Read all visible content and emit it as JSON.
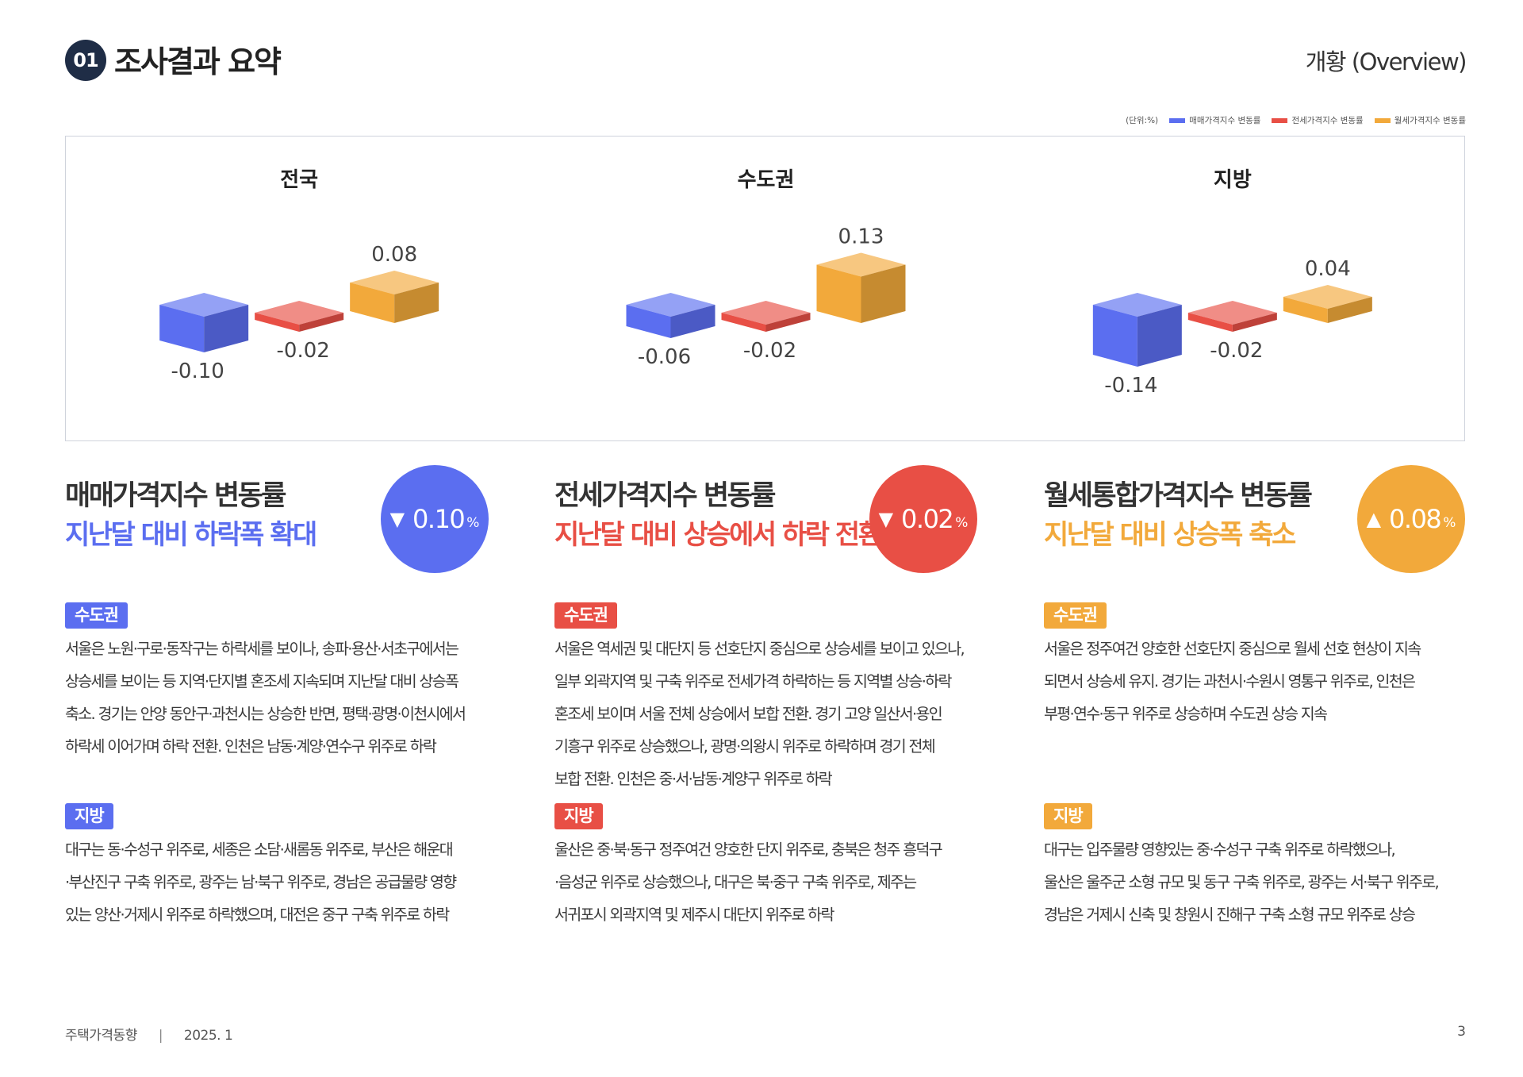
{
  "header": {
    "section_number": "01",
    "section_title": "조사결과 요약",
    "overview_label": "개황 (Overview)"
  },
  "legend": {
    "unit": "(단위:%)",
    "items": [
      {
        "label": "매매가격지수 변동률",
        "color": "#5b6ef0"
      },
      {
        "label": "전세가격지수 변동률",
        "color": "#e84f45"
      },
      {
        "label": "월세가격지수 변동률",
        "color": "#f2a93b"
      }
    ]
  },
  "chart_data": [
    {
      "type": "bar",
      "title": "전국",
      "categories": [
        "매매가격지수 변동률",
        "전세가격지수 변동률",
        "월세가격지수 변동률"
      ],
      "values": [
        -0.1,
        -0.02,
        0.08
      ],
      "labels": [
        "-0.10",
        "-0.02",
        "0.08"
      ]
    },
    {
      "type": "bar",
      "title": "수도권",
      "categories": [
        "매매가격지수 변동률",
        "전세가격지수 변동률",
        "월세가격지수 변동률"
      ],
      "values": [
        -0.06,
        -0.02,
        0.13
      ],
      "labels": [
        "-0.06",
        "-0.02",
        "0.13"
      ]
    },
    {
      "type": "bar",
      "title": "지방",
      "categories": [
        "매매가격지수 변동률",
        "전세가격지수 변동률",
        "월세가격지수 변동률"
      ],
      "values": [
        -0.14,
        -0.02,
        0.04
      ],
      "labels": [
        "-0.14",
        "-0.02",
        "0.04"
      ]
    }
  ],
  "columns": [
    {
      "title": "매매가격지수 변동률",
      "subtitle": "지난달 대비 하락폭 확대",
      "color": "#5b6ef0",
      "arrow": "▼",
      "value": "0.10",
      "unit": "%",
      "sections": [
        {
          "tag": "수도권",
          "lines": [
            "서울은 노원·구로·동작구는 하락세를 보이나, 송파·용산·서초구에서는",
            "상승세를 보이는 등 지역·단지별 혼조세 지속되며 지난달 대비 상승폭",
            "축소. 경기는 안양 동안구·과천시는 상승한 반면, 평택·광명·이천시에서",
            "하락세 이어가며 하락 전환. 인천은 남동·계양·연수구 위주로 하락"
          ]
        },
        {
          "tag": "지방",
          "lines": [
            "대구는 동·수성구 위주로, 세종은 소담·새롬동 위주로, 부산은 해운대",
            "·부산진구 구축 위주로, 광주는 남·북구 위주로, 경남은 공급물량 영향",
            "있는 양산·거제시 위주로 하락했으며, 대전은 중구 구축 위주로 하락"
          ]
        }
      ]
    },
    {
      "title": "전세가격지수 변동률",
      "subtitle": "지난달 대비 상승에서 하락 전환",
      "color": "#e84f45",
      "arrow": "▼",
      "value": "0.02",
      "unit": "%",
      "sections": [
        {
          "tag": "수도권",
          "lines": [
            "서울은 역세권 및 대단지 등 선호단지 중심으로 상승세를 보이고 있으나,",
            "일부 외곽지역 및 구축 위주로 전세가격 하락하는 등 지역별 상승·하락",
            "혼조세 보이며 서울 전체 상승에서 보합 전환. 경기 고양 일산서·용인",
            "기흥구 위주로 상승했으나, 광명·의왕시 위주로 하락하며 경기 전체",
            "보합 전환. 인천은 중·서·남동·계양구 위주로 하락"
          ]
        },
        {
          "tag": "지방",
          "lines": [
            "울산은 중·북·동구 정주여건 양호한 단지 위주로, 충북은 청주 흥덕구",
            "·음성군 위주로 상승했으나, 대구은 북·중구 구축 위주로, 제주는",
            "서귀포시 외곽지역 및 제주시 대단지 위주로 하락"
          ]
        }
      ]
    },
    {
      "title": "월세통합가격지수 변동률",
      "subtitle": "지난달 대비 상승폭 축소",
      "color": "#f2a93b",
      "arrow": "▲",
      "value": "0.08",
      "unit": "%",
      "sections": [
        {
          "tag": "수도권",
          "lines": [
            "서울은 정주여건 양호한 선호단지 중심으로 월세 선호 현상이 지속",
            "되면서 상승세 유지. 경기는 과천시·수원시 영통구 위주로, 인천은",
            "부평·연수·동구 위주로 상승하며 수도권 상승 지속"
          ]
        },
        {
          "tag": "지방",
          "lines": [
            "대구는 입주물량 영향있는 중·수성구 구축 위주로 하락했으나,",
            "울산은 울주군 소형 규모 및 동구 구축 위주로, 광주는 서·북구 위주로,",
            "경남은 거제시 신축 및 창원시 진해구 구축 소형 규모 위주로 상승"
          ]
        }
      ]
    }
  ],
  "footer": {
    "publication": "주택가격동향",
    "separator": "|",
    "date": "2025. 1",
    "page_number": "3"
  }
}
